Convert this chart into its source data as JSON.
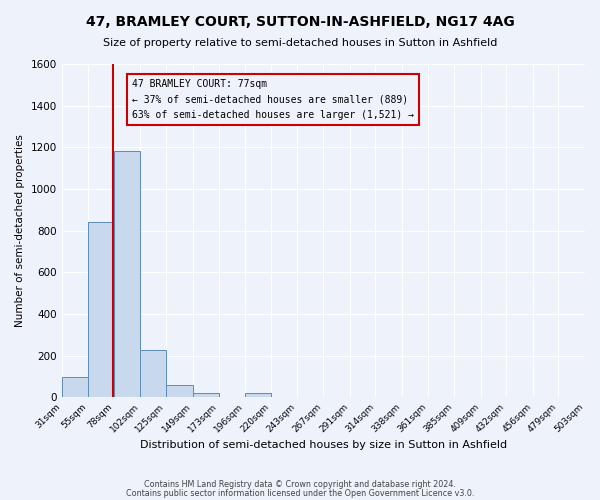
{
  "title": "47, BRAMLEY COURT, SUTTON-IN-ASHFIELD, NG17 4AG",
  "subtitle": "Size of property relative to semi-detached houses in Sutton in Ashfield",
  "xlabel": "Distribution of semi-detached houses by size in Sutton in Ashfield",
  "ylabel": "Number of semi-detached properties",
  "bin_edges": [
    31,
    55,
    78,
    102,
    125,
    149,
    173,
    196,
    220,
    243,
    267,
    291,
    314,
    338,
    361,
    385,
    409,
    432,
    456,
    479,
    503
  ],
  "bin_counts": [
    100,
    840,
    1185,
    230,
    60,
    20,
    0,
    20,
    0,
    0,
    0,
    0,
    0,
    0,
    0,
    0,
    0,
    0,
    0,
    0
  ],
  "property_size": 77,
  "pct_smaller": 37,
  "pct_larger": 63,
  "n_smaller": 889,
  "n_larger": 1521,
  "bar_color": "#c9d9ed",
  "bar_edge_color": "#5b8db8",
  "vline_color": "#cc0000",
  "annotation_box_edge_color": "#cc0000",
  "ylim": [
    0,
    1600
  ],
  "yticks": [
    0,
    200,
    400,
    600,
    800,
    1000,
    1200,
    1400,
    1600
  ],
  "background_color": "#eef2fb",
  "grid_color": "#ffffff",
  "footer1": "Contains HM Land Registry data © Crown copyright and database right 2024.",
  "footer2": "Contains public sector information licensed under the Open Government Licence v3.0."
}
